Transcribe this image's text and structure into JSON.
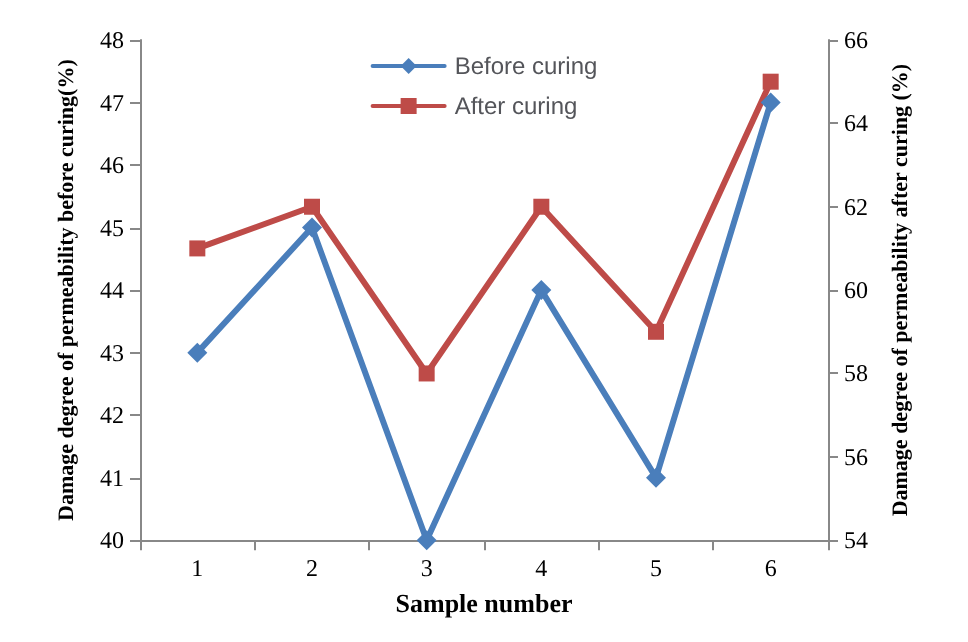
{
  "chart_data": {
    "type": "line",
    "xlabel": "Sample number",
    "ylabel": "Damage degree of permeability before curing(%)",
    "y2label": "Damage degree of permeability after curing (%)",
    "categories": [
      "1",
      "2",
      "3",
      "4",
      "5",
      "6"
    ],
    "series": [
      {
        "name": "Before curing",
        "color": "#4a7ebb",
        "marker": "diamond",
        "values": [
          43,
          45,
          40,
          44,
          41,
          47
        ]
      },
      {
        "name": "After curing",
        "color": "#be4b48",
        "marker": "square",
        "axis": "y2",
        "values": [
          61,
          62,
          58,
          62,
          59,
          65
        ]
      }
    ],
    "ylim": [
      40,
      48
    ],
    "yticks": [
      40,
      41,
      42,
      43,
      44,
      45,
      46,
      47,
      48
    ],
    "y2lim": [
      54,
      66
    ],
    "y2ticks": [
      54,
      56,
      58,
      60,
      62,
      64,
      66
    ],
    "grid": false,
    "legend": "top",
    "line_style": "solid"
  }
}
